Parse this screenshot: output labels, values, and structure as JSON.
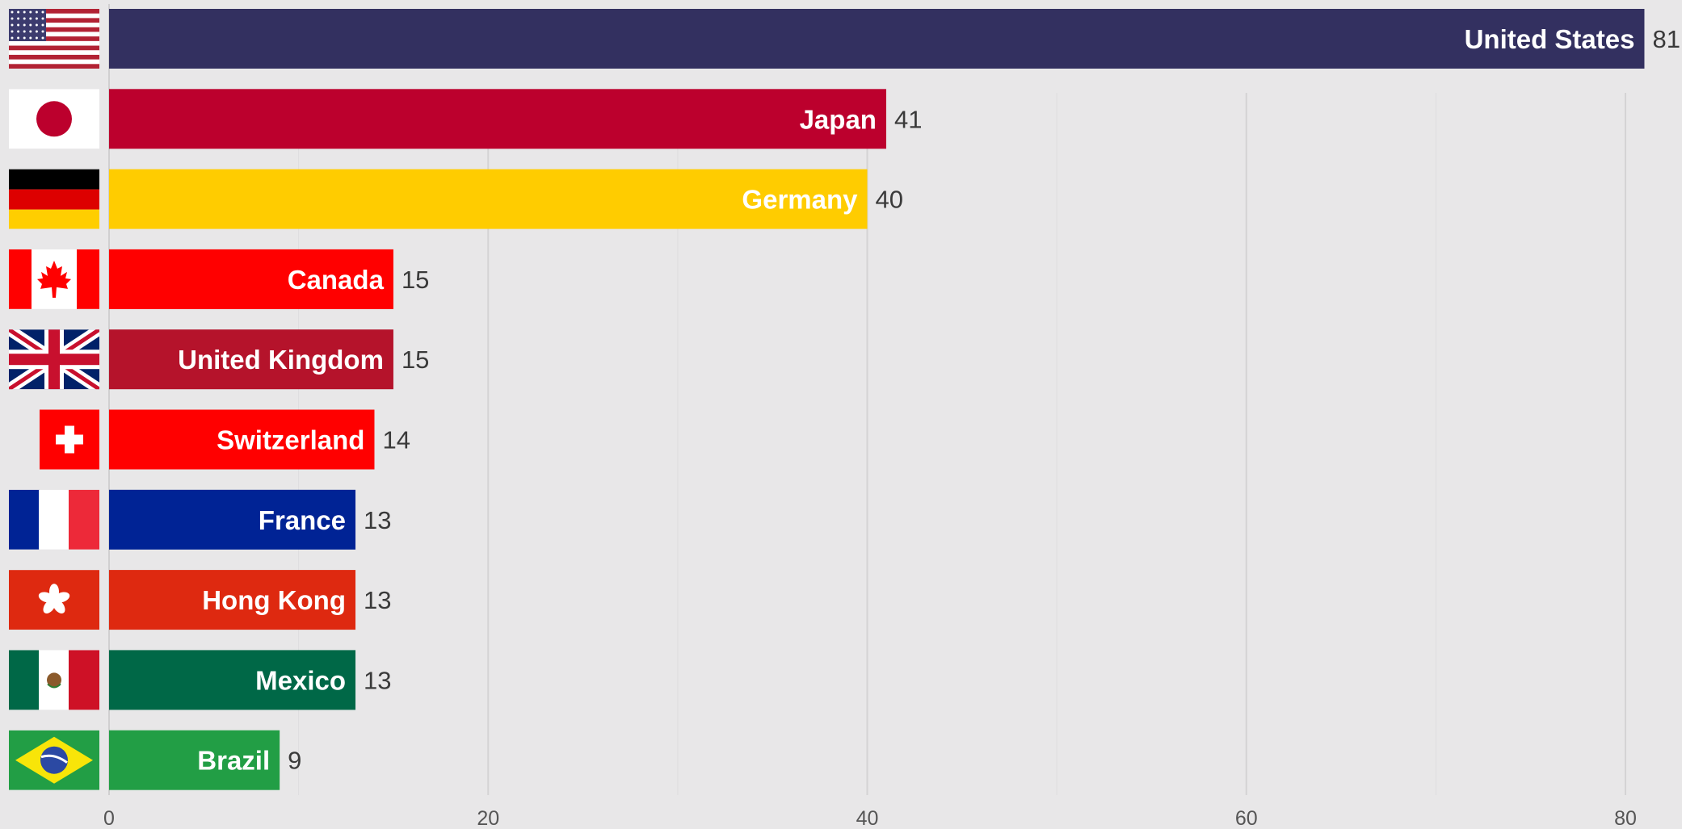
{
  "chart_data": {
    "type": "bar",
    "orientation": "horizontal",
    "categories": [
      "United States",
      "Japan",
      "Germany",
      "Canada",
      "United Kingdom",
      "Switzerland",
      "France",
      "Hong Kong",
      "Mexico",
      "Brazil"
    ],
    "values": [
      81,
      41,
      40,
      15,
      15,
      14,
      13,
      13,
      13,
      9
    ],
    "bar_colors": [
      "#333060",
      "#bc002d",
      "#ffcc00",
      "#ff0000",
      "#b5132b",
      "#ff0000",
      "#002395",
      "#de2910",
      "#006847",
      "#229e45"
    ],
    "flag_icons": [
      "us-flag-icon",
      "japan-flag-icon",
      "germany-flag-icon",
      "canada-flag-icon",
      "uk-flag-icon",
      "switzerland-flag-icon",
      "france-flag-icon",
      "hong-kong-flag-icon",
      "mexico-flag-icon",
      "brazil-flag-icon"
    ],
    "xlim": [
      0,
      80
    ],
    "x_ticks": [
      0,
      20,
      40,
      60,
      80
    ],
    "grid": true,
    "legend": "none",
    "title": "",
    "xlabel": "",
    "ylabel": ""
  }
}
